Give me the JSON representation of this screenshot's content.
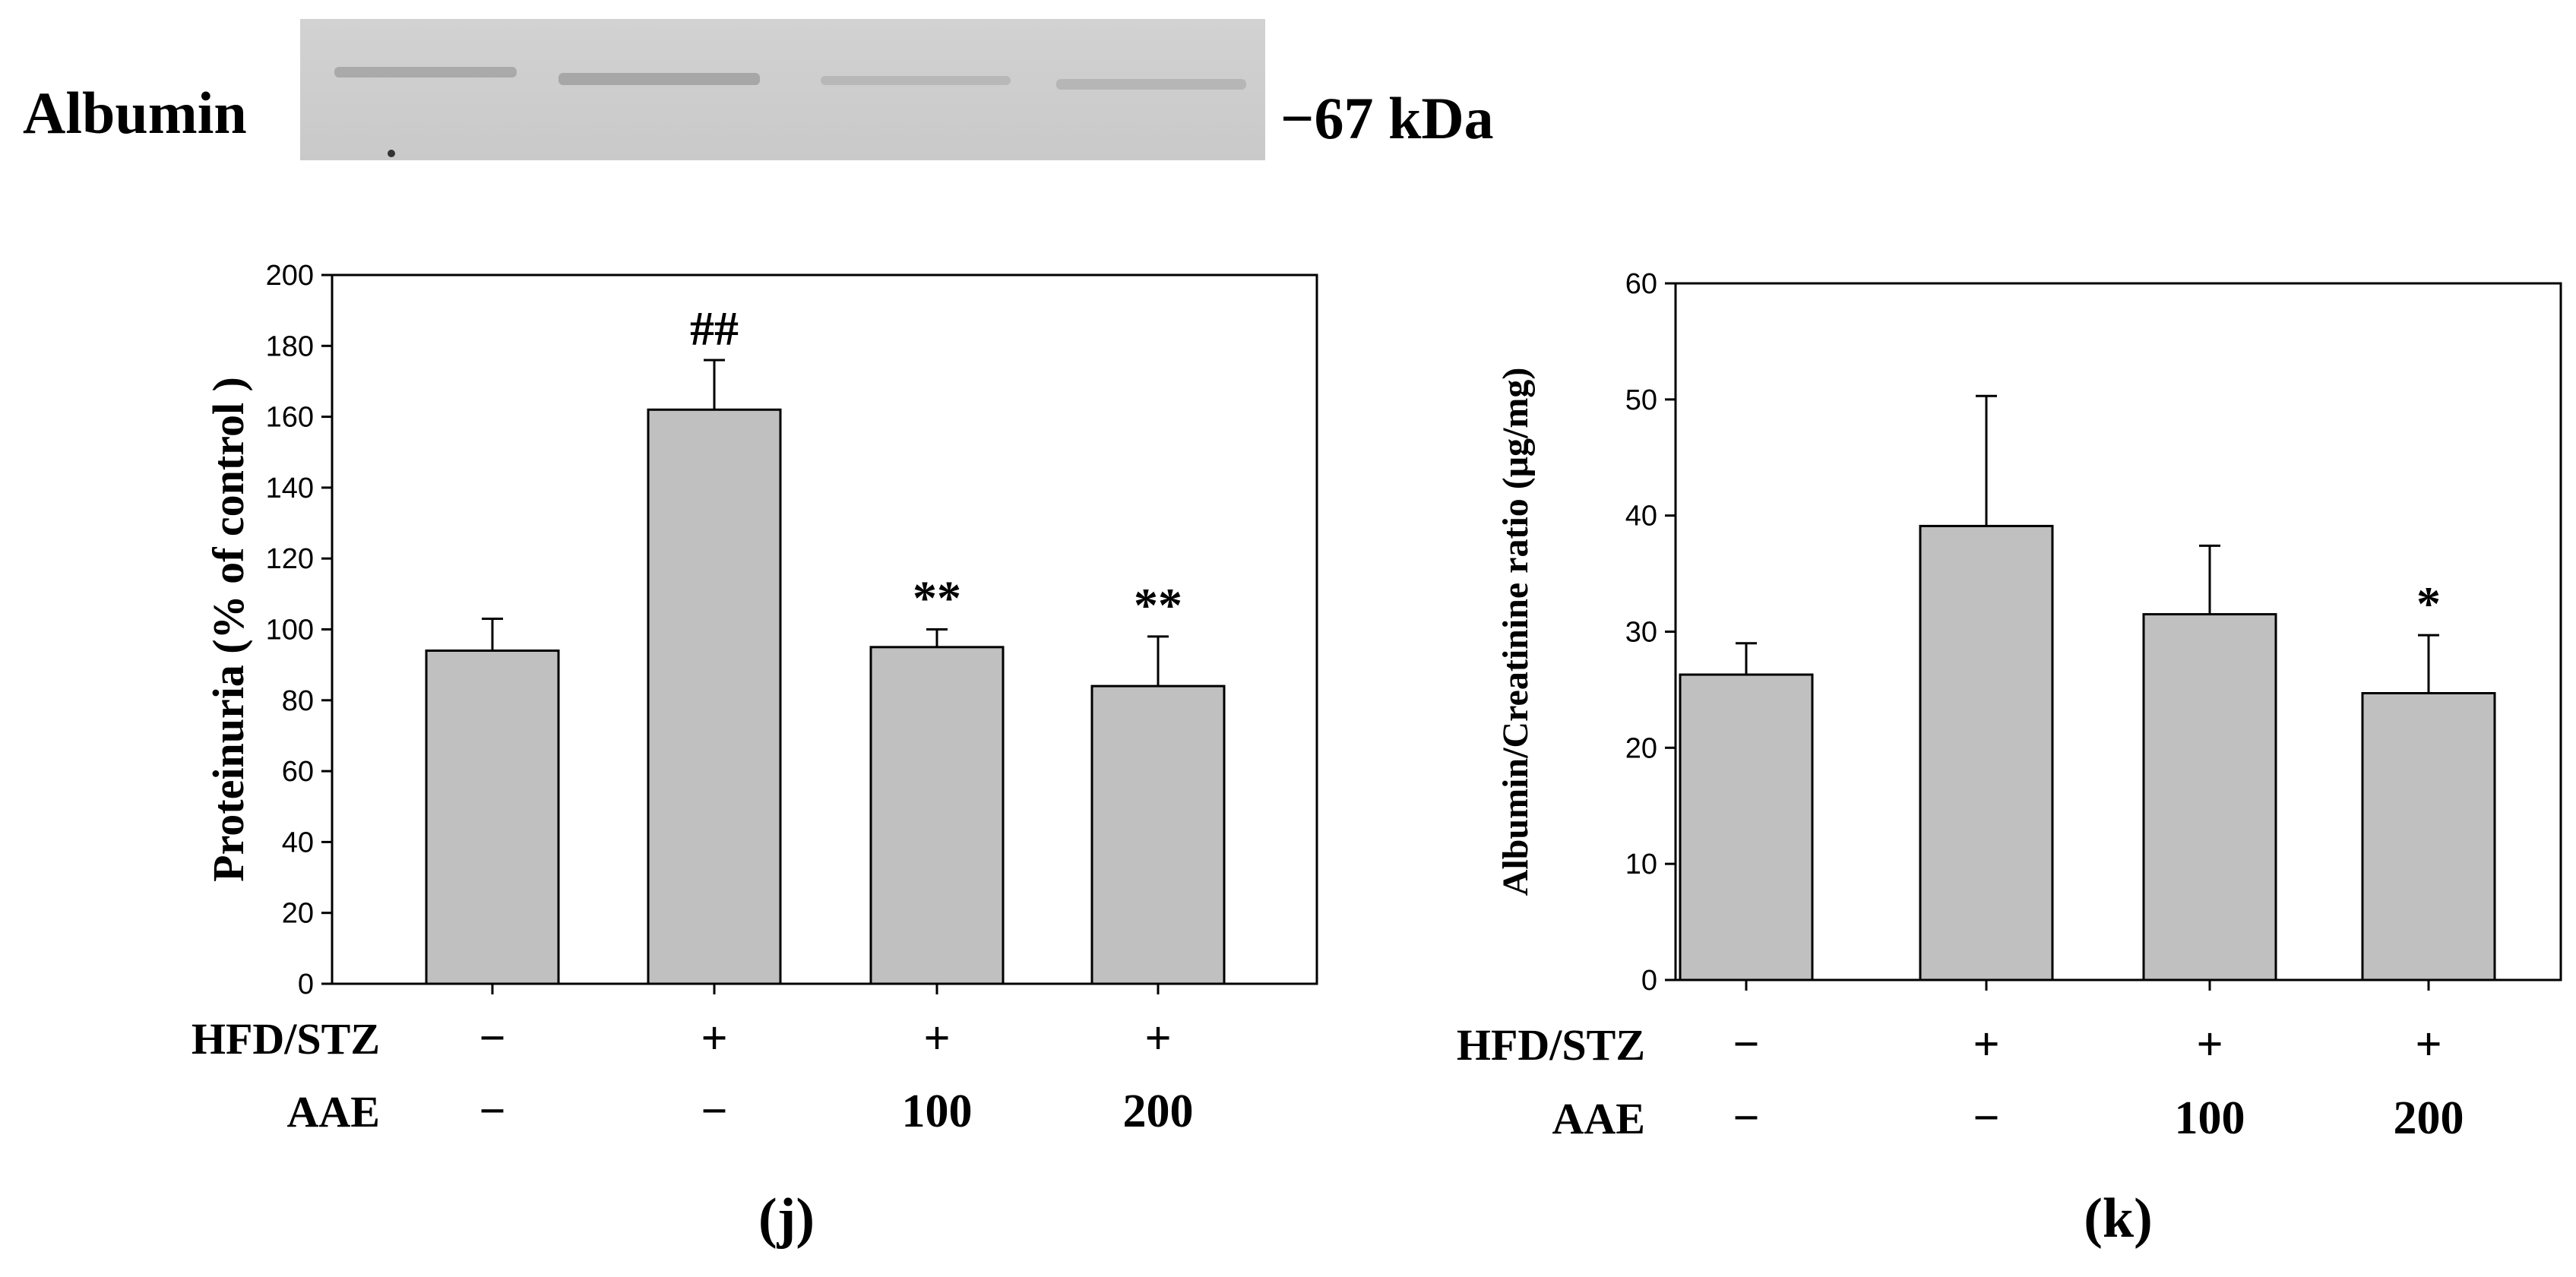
{
  "blot": {
    "label": "Albumin",
    "marker": "−67 kDa"
  },
  "chart_data": [
    {
      "panel_label": "(j)",
      "type": "bar",
      "ylabel": "Proteinuria (% of control )",
      "ylim": [
        0,
        200
      ],
      "yticks": [
        0,
        20,
        40,
        60,
        80,
        100,
        120,
        140,
        160,
        180,
        200
      ],
      "values": [
        94,
        162,
        95,
        84
      ],
      "errors": [
        9,
        14,
        5,
        14
      ],
      "annotations": [
        "",
        "##",
        "**",
        "**"
      ],
      "row_labels": [
        "HFD/STZ",
        "AAE"
      ],
      "hfd_stz": [
        "−",
        "+",
        "+",
        "+"
      ],
      "aae": [
        "−",
        "−",
        "100",
        "200"
      ],
      "bar_color": "#c0c0c0"
    },
    {
      "panel_label": "(k)",
      "type": "bar",
      "ylabel": "Albumin/Creatinine ratio (μg/mg)",
      "ylim": [
        0,
        60
      ],
      "yticks": [
        0,
        10,
        20,
        30,
        40,
        50,
        60
      ],
      "values": [
        26.3,
        39.1,
        31.5,
        24.7
      ],
      "errors": [
        2.7,
        11.2,
        5.9,
        5.0
      ],
      "annotations": [
        "",
        "",
        "",
        "*"
      ],
      "row_labels": [
        "HFD/STZ",
        "AAE"
      ],
      "hfd_stz": [
        "−",
        "+",
        "+",
        "+"
      ],
      "aae": [
        "−",
        "−",
        "100",
        "200"
      ],
      "bar_color": "#c0c0c0"
    }
  ]
}
